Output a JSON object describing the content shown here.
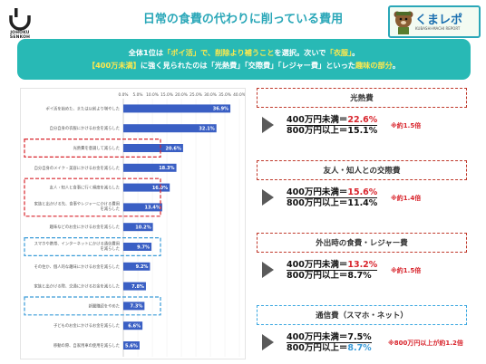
{
  "header": {
    "title": "日常の食費の代わりに削っている費用",
    "left_logo_text": [
      "JOHOKU",
      "SENKOH"
    ],
    "right_logo_brand": "くまレポ",
    "right_logo_sub": "KUBASHI-MACHI REPORT"
  },
  "banner": {
    "line1": [
      "全体1位は",
      "「ポイ活」で、削除より補うこと",
      "を選択。次いで",
      "「衣服」",
      "。"
    ],
    "line2": [
      "【400万未満】",
      "に強く見られたのは「光熱費」「交際費」「レジャー費」といった",
      "趣味の部分",
      "。"
    ]
  },
  "colors": {
    "teal": "#28b9b5",
    "bar": "#3a5fc4",
    "red": "#d8242c",
    "blue": "#3a9bd8"
  },
  "chart_data": {
    "type": "bar",
    "orientation": "horizontal",
    "categories": [
      "ポイ活を始めた、または以前より増やした",
      "自分自身の衣服にかけるお金を減らした",
      "光熱費を意識して減らした",
      "自分自身のメイク・美容にかけるお金を減らした",
      "友人・知人と食事に行く頻度を減らした",
      "家族と出かける先、食事やレジャーにかける費用を減らした",
      "趣味などのお金にかけるお金を減らした",
      "スマホや携帯、インターネットにかける通信費用を減らした",
      "その住か、個人的な趣味にかけるお金を減らした",
      "家族と出かける際、交通にかけるお金を減らした",
      "新聞購読をやめた",
      "子どものお金にかけるお金を減らした",
      "移動の際、自家用車の使用を減らした"
    ],
    "values": [
      36.9,
      32.1,
      20.6,
      18.3,
      16.0,
      13.4,
      10.2,
      9.7,
      9.2,
      7.8,
      7.3,
      6.6,
      5.6
    ],
    "value_labels": [
      "36.9%",
      "32.1%",
      "20.6%",
      "18.3%",
      "16.0%",
      "13.4%",
      "10.2%",
      "9.7%",
      "9.2%",
      "7.8%",
      "7.3%",
      "6.6%",
      "5.6%"
    ],
    "xticks": [
      "0.0%",
      "5.0%",
      "10.0%",
      "15.0%",
      "20.0%",
      "25.0%",
      "30.0%",
      "35.0%",
      "40.0%"
    ],
    "xlim": [
      0,
      40
    ],
    "unit": "%",
    "highlight_red": [
      2,
      4,
      5
    ],
    "highlight_blue": [
      7,
      10
    ]
  },
  "callouts": [
    {
      "title": "光熱費",
      "style": "red",
      "low_label": "400万円未満＝",
      "low_value": "22.6%",
      "high_label": "800万円以上＝",
      "high_value": "15.1%",
      "ratio": "※約1.5倍"
    },
    {
      "title": "友人・知人との交際費",
      "style": "red",
      "low_label": "400万円未満＝",
      "low_value": "15.6%",
      "high_label": "800万円以上＝",
      "high_value": "11.4%",
      "ratio": "※約1.4倍"
    },
    {
      "title": "外出時の食費・レジャー費",
      "style": "red",
      "low_label": "400万円未満＝",
      "low_value": "13.2%",
      "high_label": "800万円以上＝",
      "high_value": "8.7%",
      "ratio": "※約1.5倍"
    },
    {
      "title": "通信費（スマホ・ネット）",
      "style": "blue",
      "low_label": "400万円未満＝",
      "low_value": "7.5%",
      "high_label": "800万円以上＝",
      "high_value": "8.7%",
      "ratio": "※800万円以上が約1.2倍"
    }
  ]
}
